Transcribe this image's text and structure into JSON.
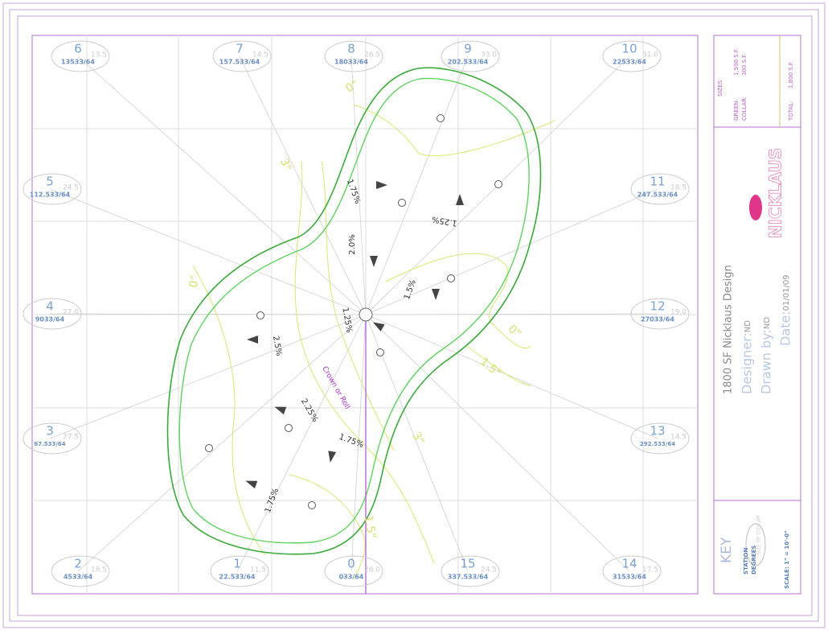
{
  "stations": [
    {
      "number": "6",
      "label": "13533/64",
      "degrees": "13.5"
    },
    {
      "number": "7",
      "label": "157.533/64",
      "degrees": "14.5"
    },
    {
      "number": "8",
      "label": "18033/64",
      "degrees": "26.5"
    },
    {
      "number": "9",
      "label": "202.533/64",
      "degrees": "33.0"
    },
    {
      "number": "10",
      "label": "22533/64",
      "degrees": "31.0"
    },
    {
      "number": "5",
      "label": "112.533/64",
      "degrees": "24.5"
    },
    {
      "number": "11",
      "label": "247.533/64",
      "degrees": "18.5"
    },
    {
      "number": "4",
      "label": "9033/64",
      "degrees": "27.0"
    },
    {
      "number": "12",
      "label": "27033/64",
      "degrees": "19.0"
    },
    {
      "number": "3",
      "label": "67.533/64",
      "degrees": "27.5"
    },
    {
      "number": "13",
      "label": "292.533/64",
      "degrees": "14.5"
    },
    {
      "number": "2",
      "label": "4533/64",
      "degrees": "18.5"
    },
    {
      "number": "1",
      "label": "22.533/64",
      "degrees": "11.5"
    },
    {
      "number": "0",
      "label": "033/64",
      "degrees": "26.0"
    },
    {
      "number": "15",
      "label": "337.533/64",
      "degrees": "24.5"
    },
    {
      "number": "14",
      "label": "31533/64",
      "degrees": "17.5"
    }
  ],
  "slopes": [
    "1.75%",
    "2.0%",
    "1.25%",
    "1.5%",
    "1.25%",
    "2.5%",
    "2.25%",
    "1.75%",
    "1.75%"
  ],
  "crown_label": "Crown or Roll",
  "contours": [
    "0\"",
    "3\"",
    "0\"",
    "0\"",
    "1.5\"",
    "3\"",
    "1.5\""
  ],
  "title_block": {
    "sizes": "SIZES",
    "green_label": "GREEN:",
    "green_value": "1,500 S.F.",
    "collar_label": "COLLAR:",
    "collar_value": "300 S.F.",
    "total_label": "TOTAL:",
    "total_value": "1,800 S.F.",
    "logo": "NICKLAUS",
    "title": "1800 SF Nicklaus Design",
    "designer_label": "Designer:",
    "designer": "ND",
    "drawn_label": "Drawn by:",
    "drawn": "ND",
    "date_label": "Date:",
    "date": "01/01/09"
  },
  "key": {
    "title": "KEY",
    "station": "STATION",
    "degrees": "DEGREES",
    "collar": "SIZE OF COLLAR",
    "scale": "SCALE: 1\" = 10'-0\""
  }
}
